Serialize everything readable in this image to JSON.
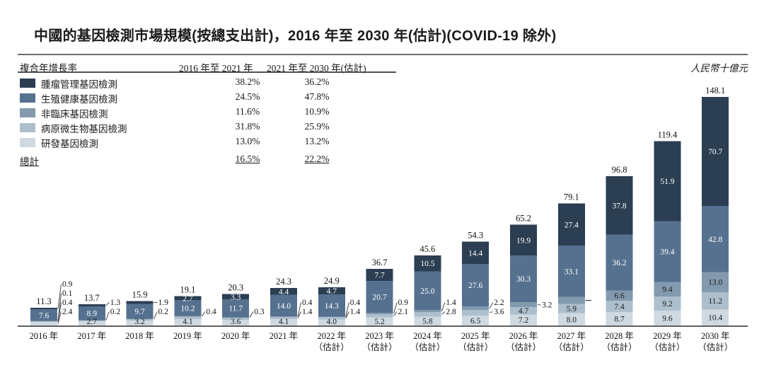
{
  "title": "中國的基因檢測市場規模(按總支出計)，2016 年至 2030 年(估計)(COVID-19 除外)",
  "unit_note": "人民幣十億元",
  "cagr_table": {
    "row_header": "複合年增長率",
    "col_headers": [
      "2016 年至 2021 年",
      "2021 年至 2030 年(估計)"
    ],
    "rows": [
      {
        "label": "腫瘤管理基因檢測",
        "color": "#2b3e52",
        "cagr_2016_2021": "38.2%",
        "cagr_2021_2030": "36.2%"
      },
      {
        "label": "生殖健康基因檢測",
        "color": "#567190",
        "cagr_2016_2021": "24.5%",
        "cagr_2021_2030": "47.8%"
      },
      {
        "label": "非臨床基因檢測",
        "color": "#8399ae",
        "cagr_2016_2021": "11.6%",
        "cagr_2021_2030": "10.9%"
      },
      {
        "label": "病原微生物基因檢測",
        "color": "#adbfcc",
        "cagr_2016_2021": "31.8%",
        "cagr_2021_2030": "25.9%"
      },
      {
        "label": "研發基因檢測",
        "color": "#cfd9e1",
        "cagr_2016_2021": "13.0%",
        "cagr_2021_2030": "13.2%"
      }
    ],
    "total_row": {
      "label": "總計",
      "cagr_2016_2021": "16.5%",
      "cagr_2021_2030": "22.2%"
    }
  },
  "chart_data": {
    "type": "bar",
    "stacked": true,
    "legend_position": "top-left",
    "value_axis_max": 148.1,
    "series_names_top_to_bottom": [
      "腫瘤管理基因檢測",
      "生殖健康基因檢測",
      "非臨床基因檢測",
      "病原微生物基因檢測",
      "研發基因檢測"
    ],
    "series_colors_top_to_bottom": [
      "#2b3e52",
      "#567190",
      "#8399ae",
      "#adbfcc",
      "#cfd9e1"
    ],
    "estimate_suffix": "（估計）",
    "bars": [
      {
        "year": "2016 年",
        "est": false,
        "total": "11.3",
        "segments": [
          {
            "v": 0.9,
            "label": "0.9",
            "mode": "callout"
          },
          {
            "v": 7.6,
            "label": "7.6",
            "mode": "inside"
          },
          {
            "v": 0.1,
            "label": "0.1",
            "mode": "callout"
          },
          {
            "v": 0.4,
            "label": "0.4",
            "mode": "callout"
          },
          {
            "v": 2.4,
            "label": "2.4",
            "mode": "callout"
          }
        ]
      },
      {
        "year": "2017 年",
        "est": false,
        "total": "13.7",
        "segments": [
          {
            "v": 1.3,
            "label": "1.3",
            "mode": "callout"
          },
          {
            "v": 8.9,
            "label": "8.9",
            "mode": "inside"
          },
          {
            "v": 0.2,
            "label": "0.2",
            "mode": "callout"
          },
          {
            "v": 0.6,
            "label": "",
            "mode": "none"
          },
          {
            "v": 2.7,
            "label": "2.7",
            "mode": "inside"
          }
        ]
      },
      {
        "year": "2018 年",
        "est": false,
        "total": "15.9",
        "segments": [
          {
            "v": 1.9,
            "label": "1.9",
            "mode": "callout"
          },
          {
            "v": 9.7,
            "label": "9.7",
            "mode": "inside"
          },
          {
            "v": 0.2,
            "label": "0.2",
            "mode": "callout"
          },
          {
            "v": 0.9,
            "label": "",
            "mode": "none"
          },
          {
            "v": 3.2,
            "label": "3.2",
            "mode": "inside"
          }
        ]
      },
      {
        "year": "2019 年",
        "est": false,
        "total": "19.1",
        "segments": [
          {
            "v": 2.7,
            "label": "2.7",
            "mode": "inside"
          },
          {
            "v": 10.2,
            "label": "10.2",
            "mode": "inside"
          },
          {
            "v": 0.4,
            "label": "0.4",
            "mode": "callout"
          },
          {
            "v": 1.7,
            "label": "",
            "mode": "none"
          },
          {
            "v": 4.1,
            "label": "4.1",
            "mode": "inside"
          }
        ]
      },
      {
        "year": "2020 年",
        "est": false,
        "total": "20.3",
        "segments": [
          {
            "v": 3.3,
            "label": "3.3",
            "mode": "inside"
          },
          {
            "v": 11.7,
            "label": "11.7",
            "mode": "inside"
          },
          {
            "v": 0.3,
            "label": "0.3",
            "mode": "callout"
          },
          {
            "v": 1.4,
            "label": "",
            "mode": "none"
          },
          {
            "v": 3.6,
            "label": "3.6",
            "mode": "inside"
          }
        ]
      },
      {
        "year": "2021 年",
        "est": false,
        "total": "24.3",
        "segments": [
          {
            "v": 4.4,
            "label": "4.4",
            "mode": "inside"
          },
          {
            "v": 14.0,
            "label": "14.0",
            "mode": "inside"
          },
          {
            "v": 0.4,
            "label": "0.4",
            "mode": "callout"
          },
          {
            "v": 1.4,
            "label": "1.4",
            "mode": "callout"
          },
          {
            "v": 4.1,
            "label": "4.1",
            "mode": "inside"
          }
        ]
      },
      {
        "year": "2022 年",
        "est": true,
        "total": "24.9",
        "segments": [
          {
            "v": 4.7,
            "label": "4.7",
            "mode": "inside"
          },
          {
            "v": 14.3,
            "label": "14.3",
            "mode": "inside"
          },
          {
            "v": 0.4,
            "label": "0.4",
            "mode": "callout"
          },
          {
            "v": 1.4,
            "label": "1.4",
            "mode": "callout"
          },
          {
            "v": 4.0,
            "label": "4.0",
            "mode": "inside"
          }
        ]
      },
      {
        "year": "2023 年",
        "est": true,
        "total": "36.7",
        "segments": [
          {
            "v": 7.7,
            "label": "7.7",
            "mode": "inside"
          },
          {
            "v": 20.7,
            "label": "20.7",
            "mode": "inside"
          },
          {
            "v": 0.9,
            "label": "0.9",
            "mode": "callout"
          },
          {
            "v": 2.1,
            "label": "2.1",
            "mode": "callout"
          },
          {
            "v": 5.2,
            "label": "5.2",
            "mode": "inside"
          }
        ]
      },
      {
        "year": "2024 年",
        "est": true,
        "total": "45.6",
        "segments": [
          {
            "v": 10.5,
            "label": "10.5",
            "mode": "inside"
          },
          {
            "v": 25.0,
            "label": "25.0",
            "mode": "inside"
          },
          {
            "v": 1.4,
            "label": "1.4",
            "mode": "callout"
          },
          {
            "v": 2.8,
            "label": "2.8",
            "mode": "callout"
          },
          {
            "v": 5.8,
            "label": "5.8",
            "mode": "inside"
          }
        ]
      },
      {
        "year": "2025 年",
        "est": true,
        "total": "54.3",
        "segments": [
          {
            "v": 14.4,
            "label": "14.4",
            "mode": "inside"
          },
          {
            "v": 27.6,
            "label": "27.6",
            "mode": "inside"
          },
          {
            "v": 2.2,
            "label": "2.2",
            "mode": "callout"
          },
          {
            "v": 3.6,
            "label": "3.6",
            "mode": "callout"
          },
          {
            "v": 6.5,
            "label": "6.5",
            "mode": "inside"
          }
        ]
      },
      {
        "year": "2026 年",
        "est": true,
        "total": "65.2",
        "segments": [
          {
            "v": 19.9,
            "label": "19.9",
            "mode": "inside"
          },
          {
            "v": 30.3,
            "label": "30.3",
            "mode": "inside"
          },
          {
            "v": 3.2,
            "label": "3.2",
            "mode": "callout"
          },
          {
            "v": 4.7,
            "label": "4.7",
            "mode": "inside"
          },
          {
            "v": 7.2,
            "label": "7.2",
            "mode": "inside"
          }
        ]
      },
      {
        "year": "2027 年",
        "est": true,
        "total": "79.1",
        "segments": [
          {
            "v": 27.4,
            "label": "27.4",
            "mode": "inside"
          },
          {
            "v": 33.1,
            "label": "33.1",
            "mode": "inside"
          },
          {
            "v": 4.7,
            "label": "",
            "mode": "tick"
          },
          {
            "v": 5.9,
            "label": "5.9",
            "mode": "inside"
          },
          {
            "v": 8.0,
            "label": "8.0",
            "mode": "inside"
          }
        ]
      },
      {
        "year": "2028 年",
        "est": true,
        "total": "96.8",
        "segments": [
          {
            "v": 37.8,
            "label": "37.8",
            "mode": "inside"
          },
          {
            "v": 36.2,
            "label": "36.2",
            "mode": "inside"
          },
          {
            "v": 6.6,
            "label": "6.6",
            "mode": "inside"
          },
          {
            "v": 7.4,
            "label": "7.4",
            "mode": "inside"
          },
          {
            "v": 8.7,
            "label": "8.7",
            "mode": "inside"
          }
        ]
      },
      {
        "year": "2029 年",
        "est": true,
        "total": "119.4",
        "segments": [
          {
            "v": 51.9,
            "label": "51.9",
            "mode": "inside"
          },
          {
            "v": 39.4,
            "label": "39.4",
            "mode": "inside"
          },
          {
            "v": 9.4,
            "label": "9.4",
            "mode": "inside"
          },
          {
            "v": 9.2,
            "label": "9.2",
            "mode": "inside"
          },
          {
            "v": 9.6,
            "label": "9.6",
            "mode": "inside"
          }
        ]
      },
      {
        "year": "2030 年",
        "est": true,
        "total": "148.1",
        "segments": [
          {
            "v": 70.7,
            "label": "70.7",
            "mode": "inside"
          },
          {
            "v": 42.8,
            "label": "42.8",
            "mode": "inside"
          },
          {
            "v": 13.0,
            "label": "13.0",
            "mode": "inside"
          },
          {
            "v": 11.2,
            "label": "11.2",
            "mode": "inside"
          },
          {
            "v": 10.4,
            "label": "10.4",
            "mode": "inside"
          }
        ]
      }
    ]
  }
}
